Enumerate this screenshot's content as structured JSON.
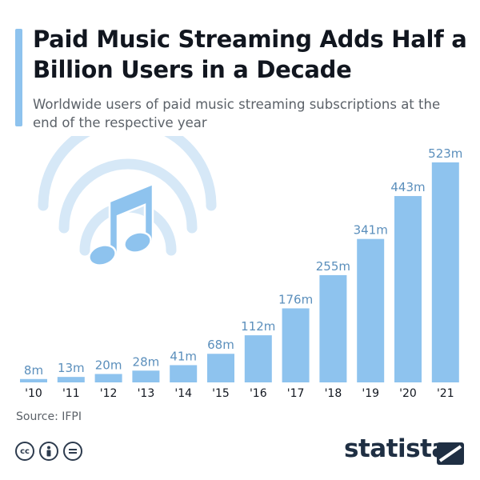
{
  "title": "Paid Music Streaming Adds Half a Billion Users in a Decade",
  "subtitle": "Worldwide users of paid music streaming subscriptions at the end of the respective year",
  "source": "Source: IFPI",
  "brand": "statista",
  "icons": [
    "cc-icon",
    "attribution-icon",
    "no-derivatives-icon",
    "music-note-icon"
  ],
  "colors": {
    "bar": "#8ec3ee",
    "value_label": "#5b8fbc",
    "title": "#11161f",
    "brand": "#1f2f43"
  },
  "chart_data": {
    "type": "bar",
    "categories": [
      "'10",
      "'11",
      "'12",
      "'13",
      "'14",
      "'15",
      "'16",
      "'17",
      "'18",
      "'19",
      "'20",
      "'21"
    ],
    "values": [
      8,
      13,
      20,
      28,
      41,
      68,
      112,
      176,
      255,
      341,
      443,
      523
    ],
    "data_labels": [
      "8m",
      "13m",
      "20m",
      "28m",
      "41m",
      "68m",
      "112m",
      "176m",
      "255m",
      "341m",
      "443m",
      "523m"
    ],
    "title": "Paid Music Streaming Adds Half a Billion Users in a Decade",
    "xlabel": "",
    "ylabel": "",
    "ylim": [
      0,
      523
    ],
    "grid": false,
    "legend": "none"
  }
}
